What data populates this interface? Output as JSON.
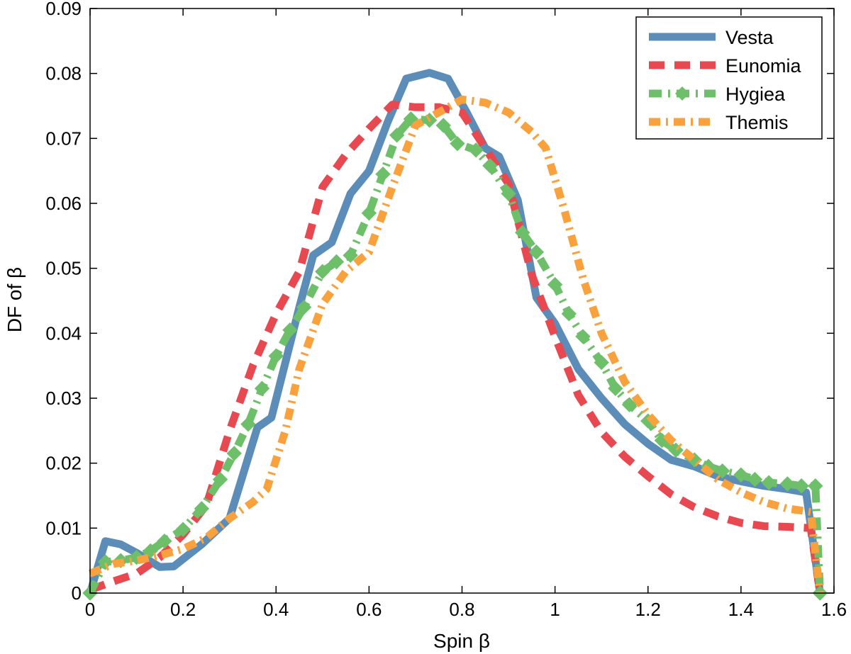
{
  "chart_data": {
    "type": "line",
    "title": "",
    "xlabel": "Spin β",
    "ylabel": "DF of β",
    "xlim": [
      0,
      1.6
    ],
    "ylim": [
      0,
      0.09
    ],
    "xticks": [
      0,
      0.2,
      0.4,
      0.6,
      0.8,
      1,
      1.2,
      1.4,
      1.6
    ],
    "xtick_labels": [
      "0",
      "0.2",
      "0.4",
      "0.6",
      "0.8",
      "1",
      "1.2",
      "1.4",
      "1.6"
    ],
    "yticks": [
      0,
      0.01,
      0.02,
      0.03,
      0.04,
      0.05,
      0.06,
      0.07,
      0.08,
      0.09
    ],
    "ytick_labels": [
      "0",
      "0.01",
      "0.02",
      "0.03",
      "0.04",
      "0.05",
      "0.06",
      "0.07",
      "0.08",
      "0.09"
    ],
    "legend_position": "top-right",
    "series": [
      {
        "name": "Vesta",
        "color": "#5b8db8",
        "style": "solid",
        "marker": "none",
        "x": [
          0,
          0.033,
          0.066,
          0.1,
          0.15,
          0.18,
          0.24,
          0.3,
          0.33,
          0.36,
          0.39,
          0.42,
          0.45,
          0.48,
          0.52,
          0.56,
          0.6,
          0.64,
          0.68,
          0.73,
          0.77,
          0.81,
          0.85,
          0.88,
          0.92,
          0.96,
          1.0,
          1.05,
          1.1,
          1.15,
          1.2,
          1.25,
          1.3,
          1.35,
          1.4,
          1.45,
          1.5,
          1.54,
          1.57
        ],
        "y": [
          0,
          0.008,
          0.0075,
          0.0062,
          0.004,
          0.0041,
          0.0075,
          0.0115,
          0.0185,
          0.0255,
          0.027,
          0.0355,
          0.044,
          0.052,
          0.054,
          0.0615,
          0.065,
          0.0725,
          0.0792,
          0.0801,
          0.0792,
          0.074,
          0.0685,
          0.0672,
          0.0605,
          0.0455,
          0.0415,
          0.0345,
          0.03,
          0.026,
          0.023,
          0.0205,
          0.0195,
          0.018,
          0.0172,
          0.0165,
          0.016,
          0.0155,
          0
        ]
      },
      {
        "name": "Eunomia",
        "color": "#e8484f",
        "style": "dashed",
        "marker": "none",
        "x": [
          0,
          0.05,
          0.1,
          0.15,
          0.2,
          0.25,
          0.3,
          0.35,
          0.4,
          0.45,
          0.5,
          0.55,
          0.6,
          0.65,
          0.7,
          0.75,
          0.8,
          0.85,
          0.9,
          0.95,
          1.0,
          1.05,
          1.1,
          1.15,
          1.2,
          1.25,
          1.3,
          1.35,
          1.4,
          1.45,
          1.5,
          1.55,
          1.57
        ],
        "y": [
          0.0005,
          0.0018,
          0.003,
          0.0055,
          0.009,
          0.0135,
          0.025,
          0.035,
          0.043,
          0.0495,
          0.0625,
          0.0675,
          0.0715,
          0.0752,
          0.0748,
          0.0748,
          0.074,
          0.0685,
          0.063,
          0.049,
          0.0395,
          0.0305,
          0.0248,
          0.021,
          0.018,
          0.0152,
          0.0132,
          0.0118,
          0.0108,
          0.0103,
          0.0102,
          0.01,
          0
        ]
      },
      {
        "name": "Hygiea",
        "color": "#6dbf6a",
        "style": "dashdot",
        "marker": "diamond",
        "x": [
          0,
          0.033,
          0.066,
          0.1,
          0.13,
          0.16,
          0.2,
          0.24,
          0.28,
          0.31,
          0.34,
          0.37,
          0.4,
          0.43,
          0.46,
          0.5,
          0.53,
          0.56,
          0.6,
          0.63,
          0.66,
          0.69,
          0.73,
          0.76,
          0.79,
          0.83,
          0.86,
          0.9,
          0.93,
          0.96,
          1.0,
          1.03,
          1.06,
          1.1,
          1.13,
          1.16,
          1.2,
          1.23,
          1.26,
          1.3,
          1.33,
          1.36,
          1.4,
          1.43,
          1.46,
          1.5,
          1.53,
          1.56,
          1.57
        ],
        "y": [
          0,
          0.0048,
          0.005,
          0.0055,
          0.0065,
          0.008,
          0.0098,
          0.013,
          0.0175,
          0.0215,
          0.026,
          0.0315,
          0.0365,
          0.0405,
          0.044,
          0.0495,
          0.051,
          0.052,
          0.0585,
          0.0645,
          0.0705,
          0.073,
          0.0728,
          0.072,
          0.0692,
          0.0682,
          0.0658,
          0.0615,
          0.0555,
          0.0525,
          0.0475,
          0.043,
          0.0395,
          0.0355,
          0.0315,
          0.029,
          0.0265,
          0.0235,
          0.022,
          0.0205,
          0.0195,
          0.0188,
          0.0182,
          0.0175,
          0.017,
          0.0168,
          0.0165,
          0.0165,
          0
        ]
      },
      {
        "name": "Themis",
        "color": "#f8a13d",
        "style": "dashdot",
        "marker": "none",
        "x": [
          0,
          0.05,
          0.1,
          0.15,
          0.2,
          0.25,
          0.3,
          0.35,
          0.38,
          0.42,
          0.45,
          0.5,
          0.55,
          0.6,
          0.65,
          0.7,
          0.75,
          0.8,
          0.85,
          0.9,
          0.95,
          0.98,
          1.02,
          1.06,
          1.1,
          1.15,
          1.2,
          1.25,
          1.3,
          1.35,
          1.4,
          1.45,
          1.5,
          1.55,
          1.57
        ],
        "y": [
          0.003,
          0.0045,
          0.005,
          0.0058,
          0.0068,
          0.0085,
          0.0115,
          0.014,
          0.016,
          0.025,
          0.0345,
          0.0445,
          0.0495,
          0.0525,
          0.0625,
          0.072,
          0.074,
          0.076,
          0.0755,
          0.074,
          0.071,
          0.0685,
          0.059,
          0.0485,
          0.04,
          0.0325,
          0.0275,
          0.0235,
          0.0205,
          0.0175,
          0.0155,
          0.014,
          0.013,
          0.0125,
          0
        ]
      }
    ]
  }
}
